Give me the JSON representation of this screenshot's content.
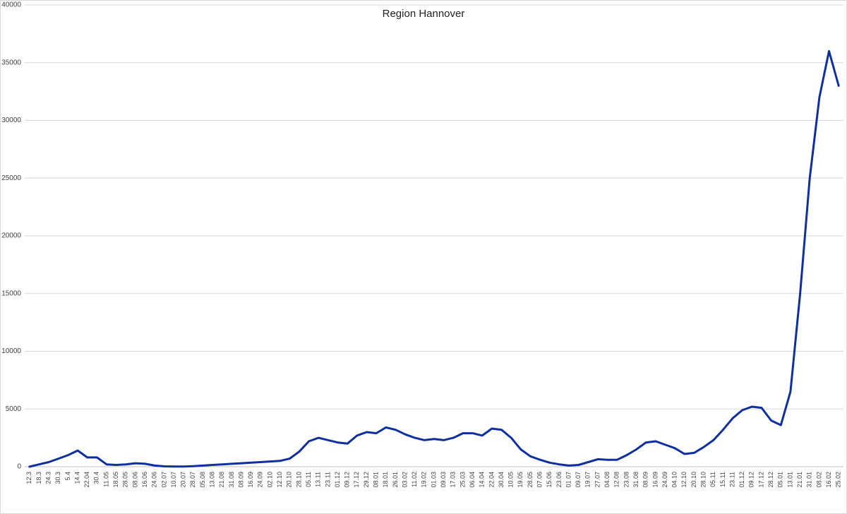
{
  "chart_data": {
    "type": "line",
    "title": "Region Hannover",
    "categories": [
      "12.3",
      "18.3",
      "24.3",
      "30.3",
      "5.4",
      "14.4",
      "22.04",
      "30.4",
      "11.05",
      "18.05",
      "28.05",
      "08.06",
      "16.06",
      "24.06",
      "02.07",
      "10.07",
      "20.07",
      "28.07",
      "05.08",
      "13.08",
      "21.08",
      "31.08",
      "08.09",
      "16.09",
      "24.09",
      "02.10",
      "12.10",
      "20.10",
      "28.10",
      "05.11",
      "13.11",
      "23.11",
      "01.12",
      "09.12",
      "17.12",
      "29.12",
      "08.01",
      "18.01",
      "26.01",
      "03.02",
      "11.02",
      "19.02",
      "01.03",
      "09.03",
      "17.03",
      "25.03",
      "06.04",
      "14.04",
      "22.04",
      "30.04",
      "10.05",
      "19.05",
      "28.05",
      "07.06",
      "15.06",
      "23.06",
      "01.07",
      "09.07",
      "19.07",
      "27.07",
      "04.08",
      "12.08",
      "23.08",
      "31.08",
      "08.09",
      "16.09",
      "24.09",
      "04.10",
      "12.10",
      "20.10",
      "28.10",
      "05.11",
      "15.11",
      "23.11",
      "01.12",
      "09.12",
      "17.12",
      "28.12",
      "05.01",
      "13.01",
      "21.01",
      "31.01",
      "08.02",
      "16.02",
      "25.02"
    ],
    "values": [
      0,
      200,
      400,
      700,
      1000,
      1400,
      800,
      800,
      200,
      150,
      200,
      300,
      250,
      100,
      30,
      20,
      20,
      50,
      100,
      150,
      200,
      250,
      300,
      350,
      400,
      450,
      500,
      700,
      1300,
      2200,
      2500,
      2300,
      2100,
      2000,
      2700,
      3000,
      2900,
      3400,
      3200,
      2800,
      2500,
      2300,
      2400,
      2300,
      2500,
      2900,
      2900,
      2700,
      3300,
      3200,
      2500,
      1500,
      900,
      600,
      350,
      200,
      100,
      150,
      400,
      650,
      600,
      600,
      1000,
      1500,
      2100,
      2200,
      1900,
      1600,
      1100,
      1200,
      1700,
      2300,
      3200,
      4200,
      4900,
      5200,
      5100,
      4000,
      3600,
      6500,
      15000,
      25000,
      32000,
      36000,
      33000
    ],
    "color": "#0f2f9e",
    "ylim": [
      0,
      40000
    ],
    "yticks": [
      0,
      5000,
      10000,
      15000,
      20000,
      25000,
      30000,
      35000,
      40000
    ],
    "grid": true
  }
}
